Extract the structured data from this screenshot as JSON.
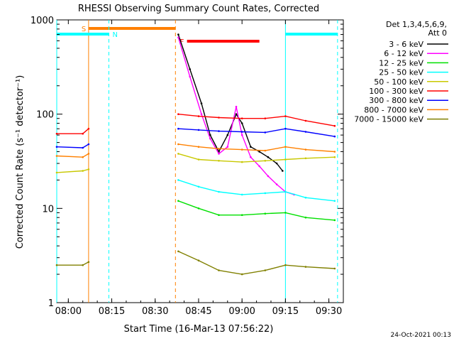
{
  "chart_data": {
    "type": "line",
    "title": "RHESSI Observing Summary Count Rates, Corrected",
    "xlabel": "Start Time (16-Mar-13 07:56:22)",
    "ylabel": "Corrected Count Rate (s⁻¹ detector⁻¹)",
    "yscale": "log",
    "ylim": [
      1,
      1000
    ],
    "xlim": [
      "07:56",
      "09:35"
    ],
    "x_tick_labels": [
      "08:00",
      "08:15",
      "08:30",
      "08:45",
      "09:00",
      "09:15",
      "09:30"
    ],
    "y_tick_labels": [
      "1",
      "10",
      "100",
      "1000"
    ],
    "legend_position": "top-right",
    "legend_header": [
      "Det 1,3,4,5,6,9,",
      "Att 0"
    ],
    "date_stamp": "24-Oct-2021 00:13",
    "colors": {
      "3 - 6 keV": "#000000",
      "6 - 12 keV": "#ff00ff",
      "12 - 25 keV": "#00e000",
      "25 - 50 keV": "#00ffff",
      "50 - 100 keV": "#c8c800",
      "100 - 300 keV": "#ff0000",
      "300 - 800 keV": "#0000ff",
      "800 - 7000 keV": "#ff8000",
      "7000 - 15000 keV": "#808000"
    },
    "markers": {
      "saa_label": "S",
      "night_label": "N",
      "flare_label": "F",
      "saa_interval": [
        "08:07",
        "08:37"
      ],
      "night_intervals": [
        [
          "07:56",
          "08:14"
        ],
        [
          "09:15",
          "09:33"
        ]
      ],
      "flare_interval": [
        "08:41",
        "09:06"
      ],
      "saa_color": "#ff8000",
      "night_color": "#00ffff",
      "flare_color": "#ff0000"
    },
    "series": [
      {
        "name": "3 - 6 keV",
        "x": [
          "07:56",
          "08:05",
          "08:07",
          "08:37",
          "08:38",
          "08:42",
          "08:46",
          "08:49",
          "08:52",
          "08:55",
          "08:58",
          "09:00",
          "09:03",
          "09:06",
          "09:09",
          "09:12",
          "09:14"
        ],
        "values": [
          null,
          null,
          null,
          null,
          700,
          300,
          130,
          60,
          40,
          60,
          100,
          80,
          45,
          40,
          35,
          30,
          25
        ]
      },
      {
        "name": "6 - 12 keV",
        "x": [
          "07:56",
          "08:05",
          "08:07",
          "08:37",
          "08:38",
          "08:42",
          "08:46",
          "08:49",
          "08:52",
          "08:55",
          "08:58",
          "09:00",
          "09:03",
          "09:06",
          "09:09",
          "09:12",
          "09:15",
          "09:18"
        ],
        "values": [
          null,
          null,
          null,
          null,
          650,
          250,
          100,
          55,
          38,
          45,
          120,
          60,
          35,
          28,
          22,
          18,
          15,
          14
        ]
      },
      {
        "name": "12 - 25 keV",
        "x": [
          "07:56",
          "08:05",
          "08:07",
          "08:37",
          "08:38",
          "08:45",
          "08:52",
          "09:00",
          "09:08",
          "09:15",
          "09:22",
          "09:32"
        ],
        "values": [
          null,
          null,
          null,
          null,
          12,
          10,
          8.5,
          8.5,
          8.8,
          9,
          8,
          7.5
        ]
      },
      {
        "name": "25 - 50 keV",
        "x": [
          "07:56",
          "08:05",
          "08:07",
          "08:37",
          "08:38",
          "08:45",
          "08:52",
          "09:00",
          "09:08",
          "09:15",
          "09:22",
          "09:32"
        ],
        "values": [
          null,
          null,
          null,
          null,
          20,
          17,
          15,
          14,
          14.5,
          15,
          13,
          12
        ]
      },
      {
        "name": "50 - 100 keV",
        "x": [
          "07:56",
          "08:05",
          "08:07",
          "08:37",
          "08:38",
          "08:45",
          "08:52",
          "09:00",
          "09:08",
          "09:15",
          "09:22",
          "09:32"
        ],
        "values": [
          24,
          25,
          26,
          null,
          38,
          33,
          32,
          31,
          32,
          33,
          34,
          35
        ]
      },
      {
        "name": "100 - 300 keV",
        "x": [
          "07:56",
          "08:05",
          "08:07",
          "08:37",
          "08:38",
          "08:45",
          "08:52",
          "09:00",
          "09:08",
          "09:15",
          "09:22",
          "09:32"
        ],
        "values": [
          62,
          62,
          70,
          null,
          100,
          95,
          92,
          90,
          90,
          95,
          85,
          75
        ]
      },
      {
        "name": "300 - 800 keV",
        "x": [
          "07:56",
          "08:05",
          "08:07",
          "08:37",
          "08:38",
          "08:45",
          "08:52",
          "09:00",
          "09:08",
          "09:15",
          "09:22",
          "09:32"
        ],
        "values": [
          45,
          44,
          48,
          null,
          70,
          68,
          66,
          65,
          64,
          70,
          65,
          58
        ]
      },
      {
        "name": "800 - 7000 keV",
        "x": [
          "07:56",
          "08:05",
          "08:07",
          "08:37",
          "08:38",
          "08:45",
          "08:52",
          "09:00",
          "09:08",
          "09:15",
          "09:22",
          "09:32"
        ],
        "values": [
          36,
          35,
          38,
          null,
          48,
          45,
          43,
          42,
          41,
          45,
          42,
          40
        ]
      },
      {
        "name": "7000 - 15000 keV",
        "x": [
          "07:56",
          "08:05",
          "08:07",
          "08:37",
          "08:38",
          "08:45",
          "08:52",
          "09:00",
          "09:08",
          "09:15",
          "09:22",
          "09:32"
        ],
        "values": [
          2.5,
          2.5,
          2.7,
          null,
          3.5,
          2.8,
          2.2,
          2.0,
          2.2,
          2.5,
          2.4,
          2.3
        ]
      }
    ]
  }
}
